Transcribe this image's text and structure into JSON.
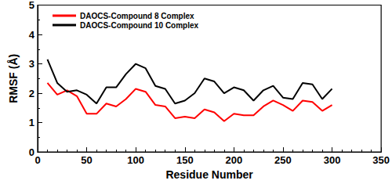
{
  "chart_data": {
    "type": "line",
    "x_label": "Residue Number",
    "y_label": "RMSF (Å)",
    "x": [
      10,
      20,
      30,
      40,
      50,
      60,
      70,
      80,
      90,
      100,
      110,
      120,
      130,
      140,
      150,
      160,
      170,
      180,
      190,
      200,
      210,
      220,
      230,
      240,
      250,
      260,
      270,
      280,
      290,
      300
    ],
    "series": [
      {
        "name": "DAOCS-Compound 8 Complex",
        "color": "#ff0000",
        "values": [
          2.35,
          1.95,
          2.1,
          1.9,
          1.3,
          1.3,
          1.65,
          1.55,
          1.8,
          2.15,
          2.05,
          1.6,
          1.55,
          1.15,
          1.2,
          1.15,
          1.45,
          1.35,
          1.05,
          1.3,
          1.25,
          1.25,
          1.55,
          1.75,
          1.6,
          1.4,
          1.75,
          1.7,
          1.4,
          1.6
        ]
      },
      {
        "name": "DAOCS-Compound 10 Complex",
        "color": "#000000",
        "values": [
          3.15,
          2.35,
          2.05,
          2.1,
          1.95,
          1.65,
          2.2,
          2.2,
          2.65,
          3.0,
          2.85,
          2.25,
          2.15,
          1.65,
          1.75,
          2.0,
          2.5,
          2.4,
          2.0,
          2.2,
          2.1,
          1.75,
          2.1,
          2.25,
          1.85,
          1.8,
          2.35,
          2.3,
          1.8,
          2.15
        ]
      }
    ],
    "xlim": [
      0,
      350
    ],
    "xticks": [
      0,
      50,
      100,
      150,
      200,
      250,
      300,
      350
    ],
    "ylim": [
      0,
      5
    ],
    "yticks": [
      0,
      1,
      2,
      3,
      4,
      5
    ],
    "grid": false,
    "legend": "upper left"
  }
}
